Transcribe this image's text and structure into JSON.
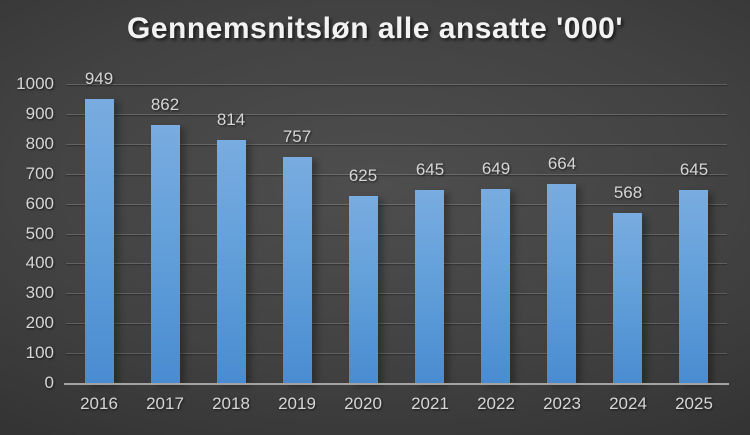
{
  "chart_data": {
    "type": "bar",
    "title": "Gennemsnitsløn alle ansatte '000'",
    "categories": [
      "2016",
      "2017",
      "2018",
      "2019",
      "2020",
      "2021",
      "2022",
      "2023",
      "2024",
      "2025"
    ],
    "values": [
      949,
      862,
      814,
      757,
      625,
      645,
      649,
      664,
      568,
      645
    ],
    "xlabel": "",
    "ylabel": "",
    "ylim": [
      0,
      1000
    ],
    "ytick_step": 100,
    "grid": true,
    "legend_position": "none",
    "data_labels_shown": true,
    "colors": {
      "bar_top": "#79ace0",
      "bar_bottom": "#4a8cd1",
      "background_center": "#4e4e4e",
      "background_edge": "#242424",
      "title_text": "#f2f2f2",
      "axis_text": "#d6d6d6",
      "gridline": "#5c5c5c",
      "axis_line": "#a3a3a3"
    }
  }
}
